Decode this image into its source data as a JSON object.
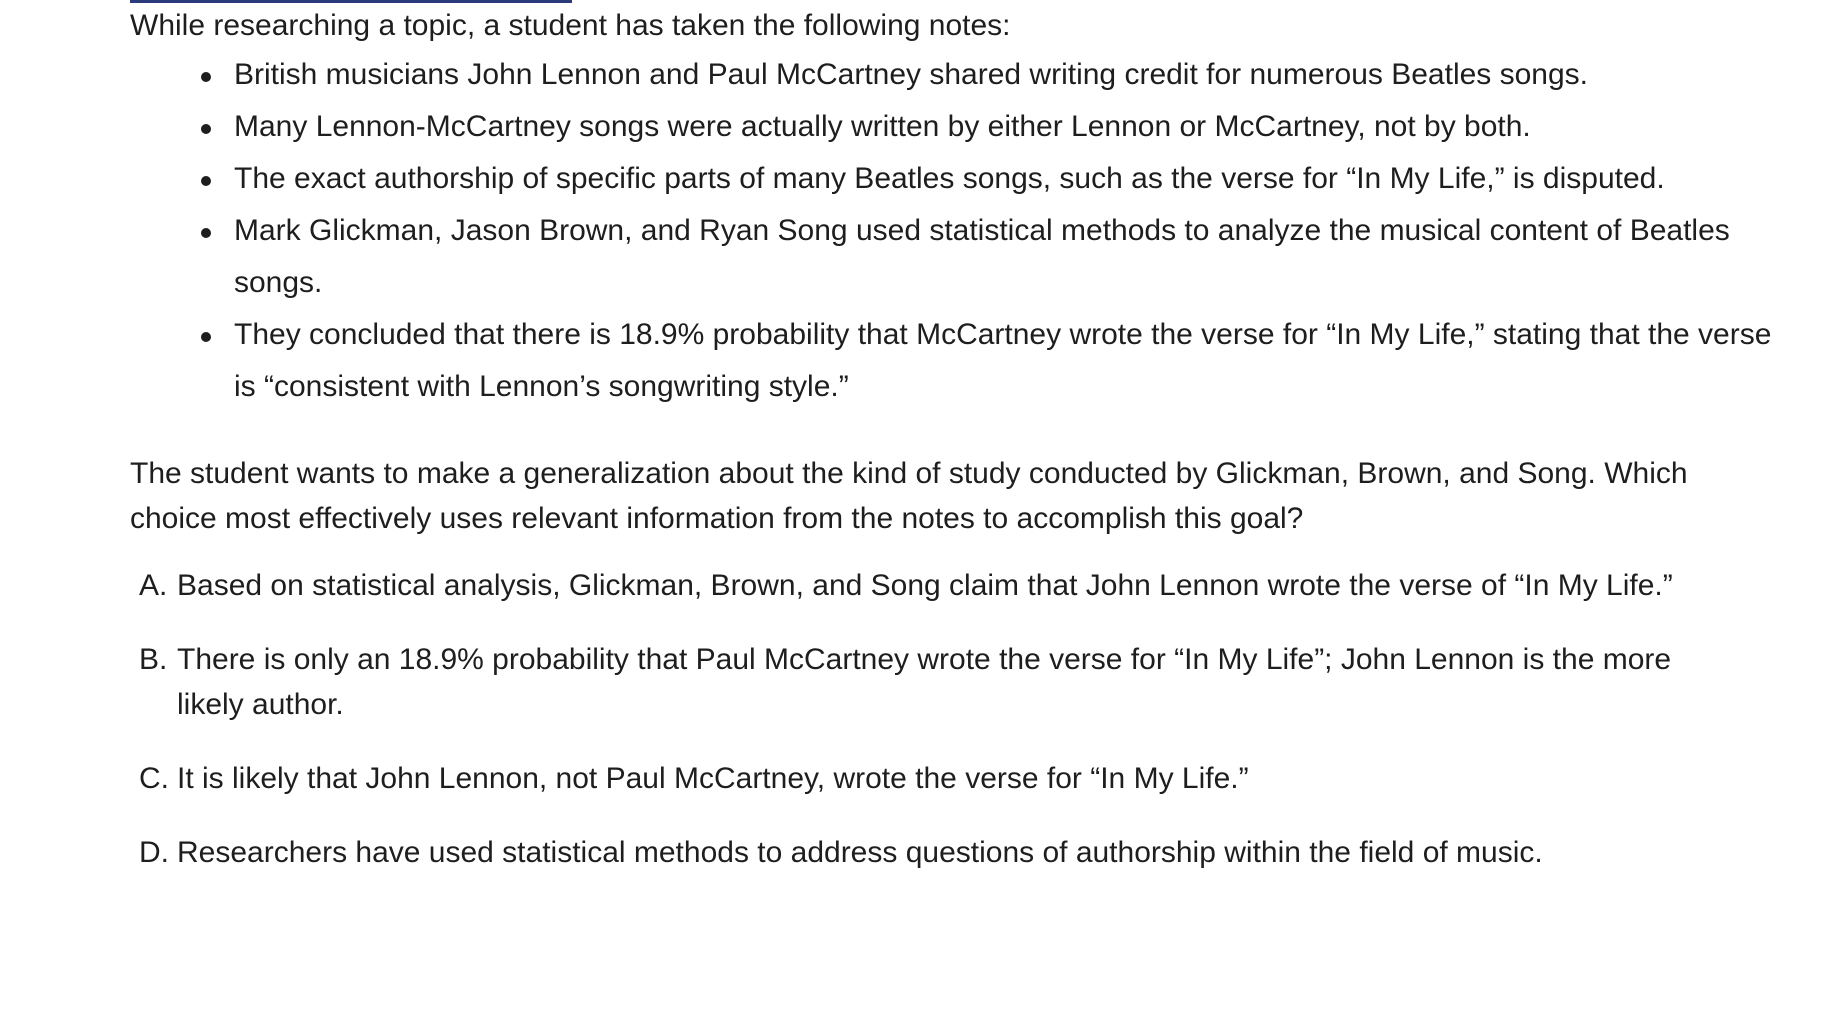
{
  "intro": "While researching a topic, a student has taken the following notes:",
  "notes": [
    "British musicians John Lennon and Paul McCartney shared writing credit for numerous Beatles songs.",
    "Many Lennon-McCartney songs were actually written by either Lennon or McCartney, not by both.",
    "The exact authorship of specific parts of many Beatles songs, such as the verse for “In My Life,” is disputed.",
    "Mark Glickman, Jason Brown, and Ryan Song used statistical methods to analyze the musical content of Beatles songs.",
    "They concluded that there is 18.9% probability that McCartney wrote the verse for “In My Life,” stating that the verse is “consistent with Lennon’s songwriting style.”"
  ],
  "prompt": "The student wants to make a generalization about the kind of study conducted by Glickman, Brown, and Song. Which choice most effectively uses relevant information from the notes to accomplish this goal?",
  "choices": [
    {
      "letter": "A.",
      "text": "Based on statistical analysis, Glickman, Brown, and Song claim that John Lennon wrote the verse of “In My Life.”"
    },
    {
      "letter": "B.",
      "text": "There is only an 18.9% probability that Paul McCartney wrote the verse for “In My Life”; John Lennon is the more likely author."
    },
    {
      "letter": "C.",
      "text": "It is likely that John Lennon, not Paul McCartney, wrote the verse for “In My Life.”"
    },
    {
      "letter": "D.",
      "text": "Researchers have used statistical methods to address questions of authorship within the field of music."
    }
  ],
  "colors": {
    "text": "#1e1e1e",
    "top_rule": "#2b3a7a",
    "background": "#ffffff"
  }
}
